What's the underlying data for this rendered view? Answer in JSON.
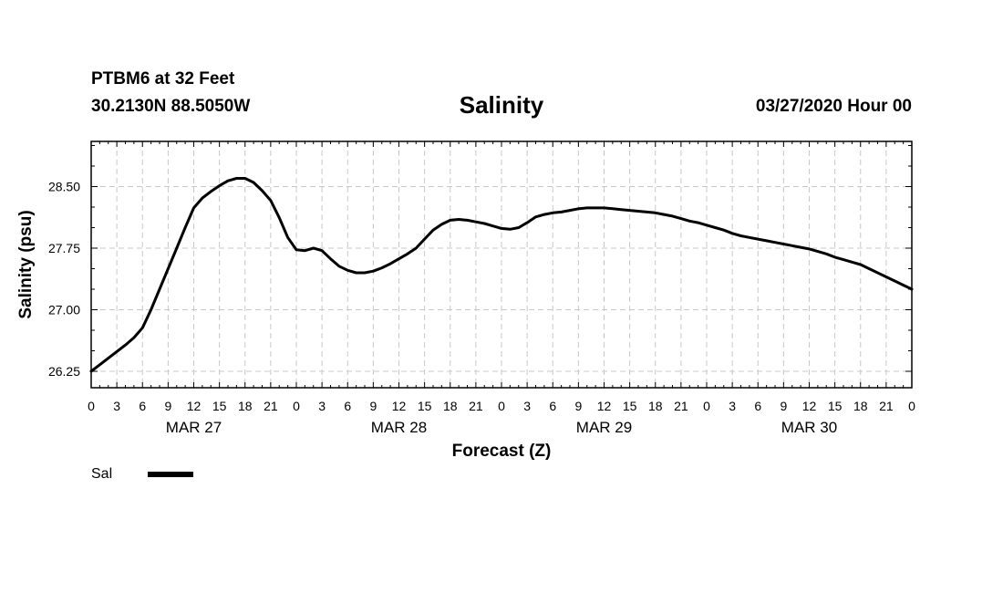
{
  "header": {
    "station": "PTBM6 at 32 Feet",
    "coords": "30.2130N 88.5050W",
    "date": "03/27/2020 Hour 00"
  },
  "chart_data": {
    "type": "line",
    "title": "Salinity",
    "xlabel": "Forecast (Z)",
    "ylabel": "Salinity (psu)",
    "x_unit": "forecast hours",
    "xlim": [
      0,
      96
    ],
    "ylim": [
      26.05,
      29.05
    ],
    "yticks": [
      26.25,
      27.0,
      27.75,
      28.5
    ],
    "ytick_labels": [
      "26.25",
      "27.00",
      "27.75",
      "28.50"
    ],
    "xtick_hours": [
      0,
      3,
      6,
      9,
      12,
      15,
      18,
      21,
      24,
      27,
      30,
      33,
      36,
      39,
      42,
      45,
      48,
      51,
      54,
      57,
      60,
      63,
      66,
      69,
      72,
      75,
      78,
      81,
      84,
      87,
      90,
      93,
      96
    ],
    "xtick_labels": [
      "0",
      "3",
      "6",
      "9",
      "12",
      "15",
      "18",
      "21",
      "0",
      "3",
      "6",
      "9",
      "12",
      "15",
      "18",
      "21",
      "0",
      "3",
      "6",
      "9",
      "12",
      "15",
      "18",
      "21",
      "0",
      "3",
      "6",
      "9",
      "12",
      "15",
      "18",
      "21",
      "0"
    ],
    "day_labels": [
      {
        "label": "MAR 27",
        "hour": 12
      },
      {
        "label": "MAR 28",
        "hour": 36
      },
      {
        "label": "MAR 29",
        "hour": 60
      },
      {
        "label": "MAR 30",
        "hour": 84
      }
    ],
    "grid": true,
    "legend": "bottom-left",
    "series": [
      {
        "name": "Sal",
        "color": "#000000",
        "x": [
          0,
          1,
          2,
          3,
          4,
          5,
          6,
          7,
          8,
          9,
          10,
          11,
          12,
          13,
          14,
          15,
          16,
          17,
          18,
          19,
          20,
          21,
          22,
          23,
          24,
          25,
          26,
          27,
          28,
          29,
          30,
          31,
          32,
          33,
          34,
          35,
          36,
          37,
          38,
          39,
          40,
          41,
          42,
          43,
          44,
          45,
          46,
          47,
          48,
          49,
          50,
          51,
          52,
          53,
          54,
          55,
          56,
          57,
          58,
          59,
          60,
          61,
          62,
          63,
          64,
          65,
          66,
          67,
          68,
          69,
          70,
          71,
          72,
          73,
          74,
          75,
          76,
          77,
          78,
          79,
          80,
          81,
          82,
          83,
          84,
          85,
          86,
          87,
          88,
          89,
          90,
          91,
          92,
          93,
          94,
          95,
          96
        ],
        "values": [
          26.25,
          26.33,
          26.41,
          26.49,
          26.57,
          26.66,
          26.78,
          27.0,
          27.25,
          27.5,
          27.75,
          28.0,
          28.24,
          28.36,
          28.44,
          28.51,
          28.57,
          28.6,
          28.6,
          28.55,
          28.45,
          28.33,
          28.12,
          27.88,
          27.73,
          27.72,
          27.75,
          27.72,
          27.62,
          27.53,
          27.48,
          27.45,
          27.45,
          27.47,
          27.51,
          27.56,
          27.62,
          27.68,
          27.75,
          27.86,
          27.97,
          28.04,
          28.09,
          28.1,
          28.09,
          28.07,
          28.05,
          28.02,
          27.99,
          27.98,
          28.0,
          28.06,
          28.13,
          28.16,
          28.18,
          28.19,
          28.21,
          28.23,
          28.24,
          28.24,
          28.24,
          28.23,
          28.22,
          28.21,
          28.2,
          28.19,
          28.18,
          28.16,
          28.14,
          28.11,
          28.08,
          28.06,
          28.03,
          28.0,
          27.97,
          27.93,
          27.9,
          27.88,
          27.86,
          27.84,
          27.82,
          27.8,
          27.78,
          27.76,
          27.74,
          27.71,
          27.68,
          27.64,
          27.61,
          27.58,
          27.55,
          27.5,
          27.45,
          27.4,
          27.35,
          27.3,
          27.25
        ]
      }
    ]
  }
}
